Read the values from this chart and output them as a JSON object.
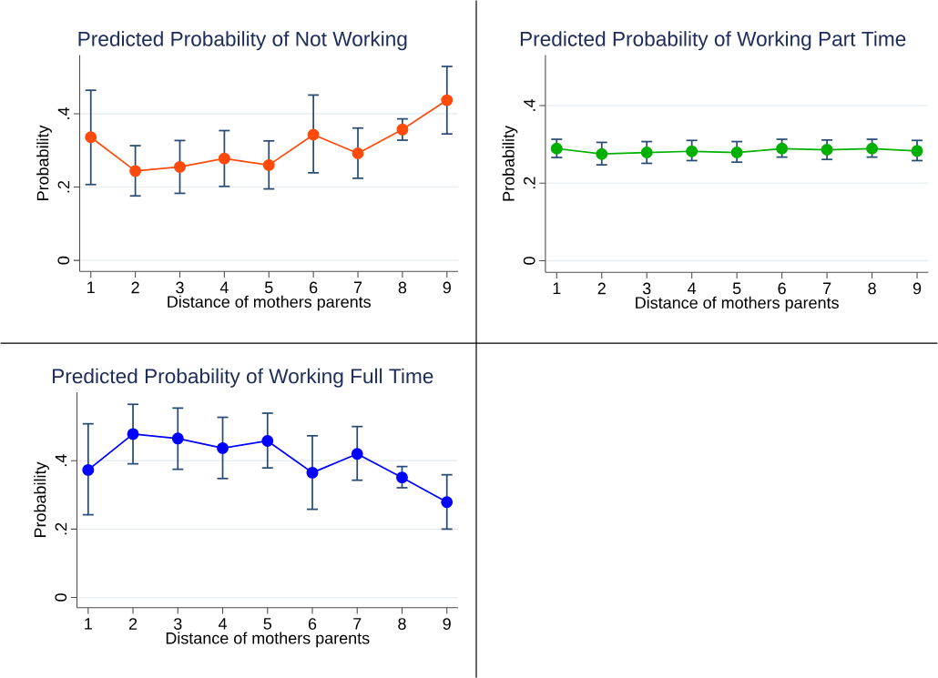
{
  "chart_data": [
    {
      "type": "line",
      "title": "Predicted Probability of Not Working",
      "xlabel": "Distance of mothers parents",
      "ylabel": "Probability",
      "x": [
        1,
        2,
        3,
        4,
        5,
        6,
        7,
        8,
        9
      ],
      "xlim": [
        0.75,
        9.25
      ],
      "xticks": [
        1,
        2,
        3,
        4,
        5,
        6,
        7,
        8,
        9
      ],
      "ylim": [
        -0.03,
        0.56
      ],
      "yticks": [
        {
          "value": 0,
          "label": "0"
        },
        {
          "value": 0.2,
          "label": ".2"
        },
        {
          "value": 0.4,
          "label": ".4"
        }
      ],
      "grid": "y",
      "marker": "circle",
      "line_style": "solid",
      "series": [
        {
          "color": "#fe4b0b",
          "values": [
            0.336,
            0.244,
            0.255,
            0.278,
            0.26,
            0.343,
            0.292,
            0.357,
            0.437
          ],
          "errors": [
            [
              0.207,
              0.464
            ],
            [
              0.176,
              0.313
            ],
            [
              0.183,
              0.327
            ],
            [
              0.202,
              0.354
            ],
            [
              0.195,
              0.326
            ],
            [
              0.239,
              0.451
            ],
            [
              0.224,
              0.361
            ],
            [
              0.328,
              0.386
            ],
            [
              0.345,
              0.529
            ]
          ]
        }
      ]
    },
    {
      "type": "line",
      "title": "Predicted Probability of  Working Part Time",
      "xlabel": "Distance of mothers parents",
      "ylabel": "Probability",
      "x": [
        1,
        2,
        3,
        4,
        5,
        6,
        7,
        8,
        9
      ],
      "xlim": [
        0.75,
        9.25
      ],
      "xticks": [
        1,
        2,
        3,
        4,
        5,
        6,
        7,
        8,
        9
      ],
      "ylim": [
        -0.03,
        0.53
      ],
      "yticks": [
        {
          "value": 0,
          "label": "0"
        },
        {
          "value": 0.2,
          "label": ".2"
        },
        {
          "value": 0.4,
          "label": ".4"
        }
      ],
      "grid": "y",
      "marker": "circle",
      "line_style": "solid",
      "series": [
        {
          "color": "#00b000",
          "values": [
            0.289,
            0.275,
            0.279,
            0.282,
            0.279,
            0.289,
            0.286,
            0.289,
            0.283
          ],
          "errors": [
            [
              0.266,
              0.313
            ],
            [
              0.247,
              0.305
            ],
            [
              0.251,
              0.307
            ],
            [
              0.258,
              0.31
            ],
            [
              0.254,
              0.307
            ],
            [
              0.267,
              0.313
            ],
            [
              0.261,
              0.311
            ],
            [
              0.267,
              0.313
            ],
            [
              0.258,
              0.31
            ]
          ]
        }
      ]
    },
    {
      "type": "line",
      "title": "Predicted Probability of Working Full Time",
      "xlabel": "Distance of mothers parents",
      "ylabel": "Probability",
      "x": [
        1,
        2,
        3,
        4,
        5,
        6,
        7,
        8,
        9
      ],
      "xlim": [
        0.75,
        9.25
      ],
      "xticks": [
        1,
        2,
        3,
        4,
        5,
        6,
        7,
        8,
        9
      ],
      "ylim": [
        -0.03,
        0.6
      ],
      "yticks": [
        {
          "value": 0,
          "label": "0"
        },
        {
          "value": 0.2,
          "label": ".2"
        },
        {
          "value": 0.4,
          "label": ".4"
        }
      ],
      "grid": "y",
      "marker": "circle",
      "line_style": "solid",
      "series": [
        {
          "color": "#0000ff",
          "values": [
            0.373,
            0.478,
            0.465,
            0.437,
            0.458,
            0.365,
            0.42,
            0.351,
            0.279
          ],
          "errors": [
            [
              0.242,
              0.508
            ],
            [
              0.391,
              0.565
            ],
            [
              0.375,
              0.554
            ],
            [
              0.348,
              0.527
            ],
            [
              0.379,
              0.539
            ],
            [
              0.258,
              0.473
            ],
            [
              0.343,
              0.5
            ],
            [
              0.321,
              0.383
            ],
            [
              0.2,
              0.359
            ]
          ]
        }
      ]
    }
  ]
}
